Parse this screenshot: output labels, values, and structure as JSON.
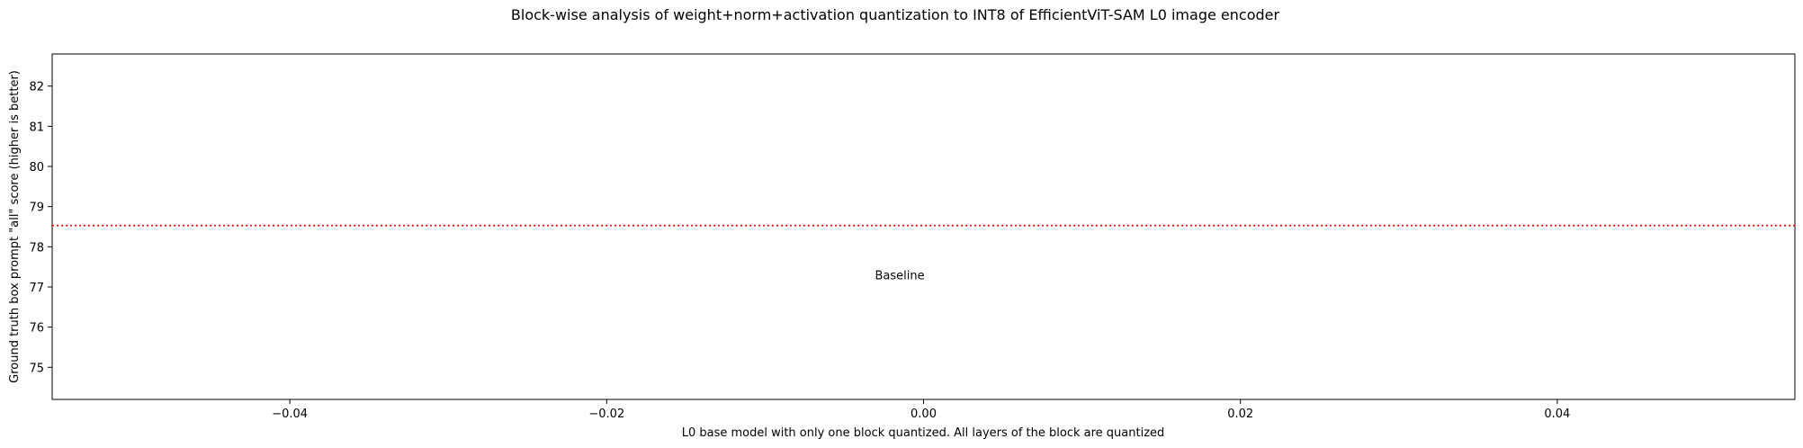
{
  "chart_data": {
    "type": "line",
    "title": "Block-wise analysis of weight+norm+activation quantization to INT8 of EfficientViT-SAM L0 image encoder",
    "xlabel": "L0 base model with only one block quantized. All layers of the block are quantized",
    "ylabel": "Ground truth box prompt \"all\" score (higher is better)",
    "xlim": [
      -0.055,
      0.055
    ],
    "ylim": [
      74.2,
      82.8
    ],
    "xticks": [
      -0.04,
      -0.02,
      0.0,
      0.02,
      0.04
    ],
    "xtick_labels": [
      "−0.04",
      "−0.02",
      "0.00",
      "0.02",
      "0.04"
    ],
    "yticks": [
      75,
      76,
      77,
      78,
      79,
      80,
      81,
      82
    ],
    "ytick_labels": [
      "75",
      "76",
      "77",
      "78",
      "79",
      "80",
      "81",
      "82"
    ],
    "grid": false,
    "series": [],
    "reference_lines": [
      {
        "orientation": "horizontal",
        "y": 78.53,
        "color": "#ff0000",
        "style": "dotted"
      }
    ],
    "annotations": [
      {
        "text": "Baseline",
        "x": -0.0015,
        "y": 77.3
      }
    ]
  }
}
